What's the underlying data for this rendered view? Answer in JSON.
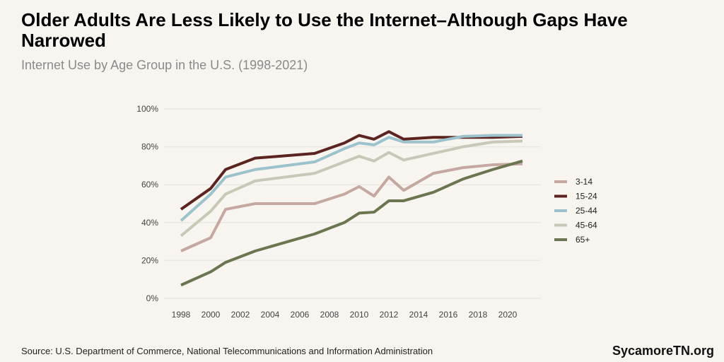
{
  "title": "Older Adults Are Less Likely to Use the Internet–Although Gaps Have Narrowed",
  "subtitle": "Internet Use by Age Group in the U.S. (1998-2021)",
  "source": "Source: U.S. Department of Commerce, National Telecommunications and Information Administration",
  "brand": "SycamoreTN.org",
  "chart_data": {
    "type": "line",
    "title": "Older Adults Are Less Likely to Use the Internet–Although Gaps Have Narrowed",
    "subtitle": "Internet Use by Age Group in the U.S. (1998-2021)",
    "xlabel": "",
    "ylabel": "",
    "x": [
      1998,
      2000,
      2001,
      2003,
      2007,
      2009,
      2010,
      2011,
      2012,
      2013,
      2015,
      2017,
      2019,
      2021
    ],
    "xlim": [
      1998,
      2021
    ],
    "ylim": [
      0,
      100
    ],
    "x_ticks": [
      "1998",
      "2000",
      "2002",
      "2004",
      "2006",
      "2008",
      "2010",
      "2012",
      "2014",
      "2016",
      "2018",
      "2020"
    ],
    "y_ticks": [
      "0%",
      "20%",
      "40%",
      "60%",
      "80%",
      "100%"
    ],
    "grid": "horizontal",
    "legend_position": "right",
    "series": [
      {
        "name": "3-14",
        "color": "#c4a8a1",
        "values": [
          25,
          32,
          47,
          50,
          50,
          55,
          59,
          54,
          64,
          57,
          66,
          69,
          70.5,
          71
        ]
      },
      {
        "name": "15-24",
        "color": "#5c2421",
        "values": [
          47,
          58,
          68,
          74,
          76.5,
          82,
          86,
          84,
          88,
          84,
          85,
          85,
          85,
          85.5
        ]
      },
      {
        "name": "25-44",
        "color": "#9cc3cc",
        "values": [
          41,
          55,
          64,
          68,
          72,
          79,
          82,
          81,
          85,
          82.5,
          82.5,
          85.5,
          86,
          86
        ]
      },
      {
        "name": "45-64",
        "color": "#c9c8b8",
        "values": [
          33,
          46,
          55,
          62,
          66,
          72,
          75,
          72.5,
          77,
          73,
          76.5,
          80,
          82.5,
          83
        ]
      },
      {
        "name": "65+",
        "color": "#6b7550",
        "values": [
          7,
          14,
          19,
          25,
          34,
          40,
          45,
          45.5,
          51.5,
          51.5,
          56,
          63,
          68,
          72.5
        ]
      }
    ]
  }
}
